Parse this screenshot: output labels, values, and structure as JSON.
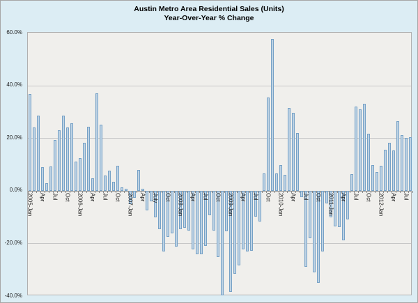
{
  "title": {
    "line1": "Austin Metro Area Residential Sales (Units)",
    "line2": "Year-Over-Year % Change"
  },
  "chart_data": {
    "type": "bar",
    "title": "Austin Metro Area Residential Sales (Units) Year-Over-Year % Change",
    "ylabel": "",
    "xlabel": "",
    "ylim": [
      -40,
      60
    ],
    "grid": true,
    "legend": false,
    "y_ticks": [
      {
        "value": 60,
        "label": "60.0%"
      },
      {
        "value": 40,
        "label": "40.0%"
      },
      {
        "value": 20,
        "label": "20.0%"
      },
      {
        "value": 0,
        "label": "0.0%"
      },
      {
        "value": -20,
        "label": "-20.0%"
      },
      {
        "value": -40,
        "label": "-40.0%"
      }
    ],
    "categories": [
      "2005-Jan",
      "2005-Feb",
      "2005-Mar",
      "2005-Apr",
      "2005-May",
      "2005-Jun",
      "2005-Jul",
      "2005-Aug",
      "2005-Sep",
      "2005-Oct",
      "2005-Nov",
      "2005-Dec",
      "2006-Jan",
      "2006-Feb",
      "2006-Mar",
      "2006-Apr",
      "2006-May",
      "2006-Jun",
      "2006-Jul",
      "2006-Aug",
      "2006-Sep",
      "2006-Oct",
      "2006-Nov",
      "2006-Dec",
      "2007-Jan",
      "2007-Feb",
      "2007-Mar",
      "2007-Apr",
      "2007-May",
      "2007-Jun",
      "2007-Jul",
      "2007-Aug",
      "2007-Sep",
      "2007-Oct",
      "2007-Nov",
      "2007-Dec",
      "2008-Jan",
      "2008-Feb",
      "2008-Mar",
      "2008-Apr",
      "2008-May",
      "2008-Jun",
      "2008-Jul",
      "2008-Aug",
      "2008-Sep",
      "2008-Oct",
      "2008-Nov",
      "2008-Dec",
      "2009-Jan",
      "2009-Feb",
      "2009-Mar",
      "2009-Apr",
      "2009-May",
      "2009-Jun",
      "2009-Jul",
      "2009-Aug",
      "2009-Sep",
      "2009-Oct",
      "2009-Nov",
      "2009-Dec",
      "2010-Jan",
      "2010-Feb",
      "2010-Mar",
      "2010-Apr",
      "2010-May",
      "2010-Jun",
      "2010-Jul",
      "2010-Aug",
      "2010-Sep",
      "2010-Oct",
      "2010-Nov",
      "2010-Dec",
      "2011-Jan",
      "2011-Feb",
      "2011-Mar",
      "2011-Apr",
      "2011-May",
      "2011-Jun",
      "2011-Jul",
      "2011-Aug",
      "2011-Sep",
      "2011-Oct",
      "2011-Nov",
      "2011-Dec",
      "2012-Jan",
      "2012-Feb",
      "2012-Mar",
      "2012-Apr",
      "2012-May",
      "2012-Jun",
      "2012-Jul",
      "2012-Aug"
    ],
    "values": [
      36.6,
      23.9,
      28.4,
      9.0,
      2.9,
      9.2,
      19.2,
      23.0,
      28.6,
      24.1,
      25.7,
      11.0,
      12.5,
      18.3,
      24.4,
      4.7,
      37.1,
      25.0,
      5.8,
      7.7,
      3.5,
      9.4,
      1.2,
      0.7,
      -5.1,
      -2.6,
      8.0,
      0.8,
      -7.5,
      -4.0,
      -10.0,
      -14.5,
      -23.2,
      -17.5,
      -16.3,
      -21.3,
      -14.5,
      -14.0,
      -15.2,
      -22.4,
      -24.1,
      -24.0,
      -21.0,
      -9.4,
      -15.1,
      -25.1,
      -39.8,
      -15.4,
      -38.4,
      -31.5,
      -28.3,
      -22.3,
      -23.2,
      -22.9,
      -9.9,
      -11.7,
      6.5,
      35.3,
      57.5,
      6.6,
      9.8,
      6.0,
      31.4,
      29.6,
      21.9,
      -2.5,
      -29.0,
      -18.1,
      -30.9,
      -35.0,
      -23.0,
      -4.7,
      -10.0,
      -13.5,
      -13.8,
      -18.8,
      -10.8,
      6.3,
      32.0,
      30.8,
      32.9,
      21.6,
      9.7,
      7.1,
      9.5,
      15.6,
      18.1,
      15.4,
      26.4,
      21.1,
      20.0,
      20.2
    ],
    "x_tick_labels": [
      {
        "index": 0,
        "label": "2005-Jan"
      },
      {
        "index": 3,
        "label": "Apr"
      },
      {
        "index": 6,
        "label": "Jul"
      },
      {
        "index": 9,
        "label": "Oct"
      },
      {
        "index": 12,
        "label": "2006-Jan"
      },
      {
        "index": 15,
        "label": "Apr"
      },
      {
        "index": 18,
        "label": "Jul"
      },
      {
        "index": 21,
        "label": "Oct"
      },
      {
        "index": 24,
        "label": "2007-Jan"
      },
      {
        "index": 27,
        "label": "Apr"
      },
      {
        "index": 30,
        "label": "July"
      },
      {
        "index": 33,
        "label": "Oct"
      },
      {
        "index": 36,
        "label": "2008-Jan"
      },
      {
        "index": 39,
        "label": "Apr"
      },
      {
        "index": 42,
        "label": "Jul"
      },
      {
        "index": 45,
        "label": "Oct"
      },
      {
        "index": 48,
        "label": "2009-Jan"
      },
      {
        "index": 51,
        "label": "Apr"
      },
      {
        "index": 54,
        "label": "Jul"
      },
      {
        "index": 57,
        "label": "Oct"
      },
      {
        "index": 60,
        "label": "2010-Jan"
      },
      {
        "index": 63,
        "label": "Apr"
      },
      {
        "index": 66,
        "label": "Jul"
      },
      {
        "index": 69,
        "label": "Oct"
      },
      {
        "index": 72,
        "label": "2011-Jan"
      },
      {
        "index": 75,
        "label": "Apr"
      },
      {
        "index": 78,
        "label": "Jul"
      },
      {
        "index": 81,
        "label": "Oct"
      },
      {
        "index": 84,
        "label": "2012-Jan"
      },
      {
        "index": 87,
        "label": "Apr"
      },
      {
        "index": 90,
        "label": "Jul"
      }
    ],
    "colors": {
      "outer_background": "#dcedf4",
      "plot_background": "#f0efec",
      "bar_fill": "#bdd2e4",
      "bar_border": "#76a1c6",
      "gridline": "#c6c6c6",
      "zero_axis": "#8a8a8a",
      "frame_border": "#a6a6a6",
      "text": "#000000"
    }
  }
}
